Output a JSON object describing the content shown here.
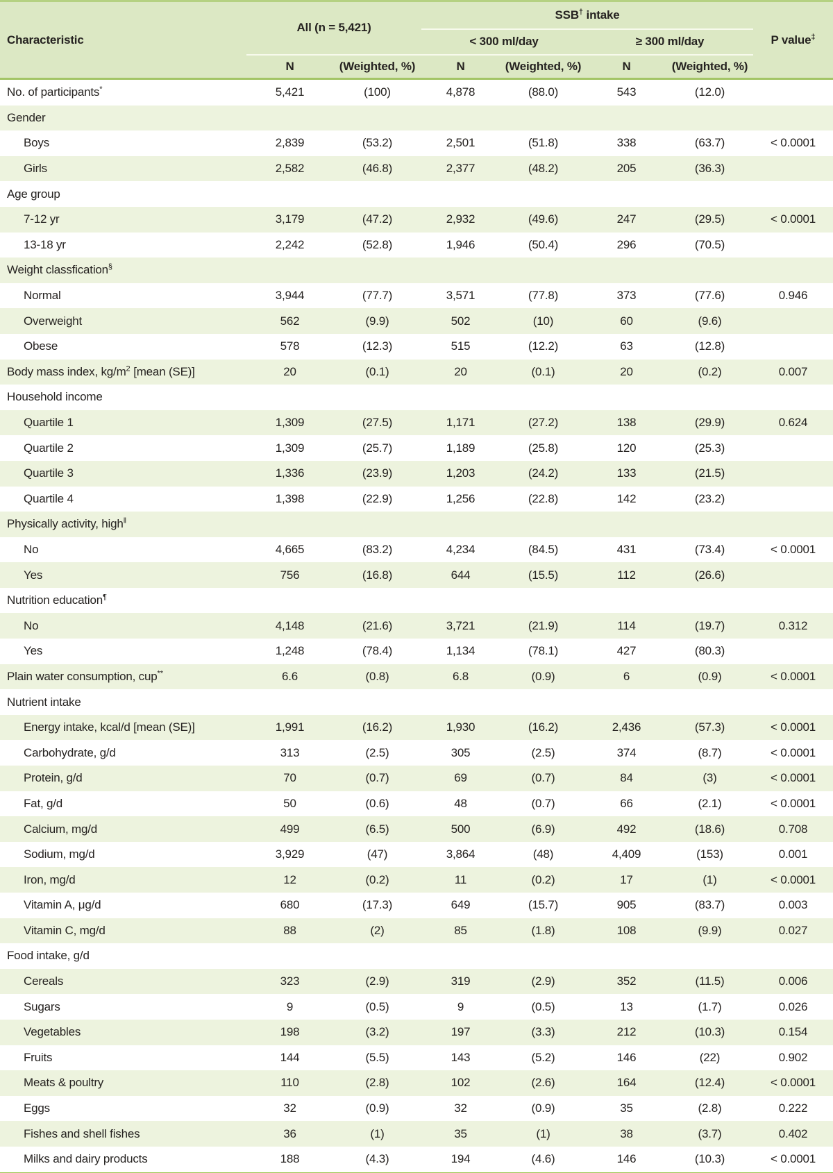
{
  "table": {
    "colors": {
      "header_bg": "#dce8c4",
      "row_alt_bg": "#edf3de",
      "row_bg": "#ffffff",
      "top_border": "#b5d182",
      "header_divider": "#a3c566",
      "bottom_border": "#9cc653",
      "header_inner_line": "#f7faec",
      "text": "#262321"
    },
    "header": {
      "characteristic": "Characteristic",
      "all": "All (n = 5,421)",
      "ssb_intake": {
        "pre": "SSB",
        "sup": "†",
        "post": " intake"
      },
      "group_lt": "< 300 ml/day",
      "group_ge": "≥ 300 ml/day",
      "p_value": {
        "pre": "P value",
        "sup": "‡"
      },
      "n_label": "N",
      "weighted_label": "(Weighted, %)"
    },
    "rows": [
      {
        "label": "No. of participants",
        "sup": "*",
        "indent": false,
        "cells": [
          "5,421",
          "(100)",
          "4,878",
          "(88.0)",
          "543",
          "(12.0)",
          ""
        ]
      },
      {
        "label": "Gender",
        "indent": false,
        "cells": [
          "",
          "",
          "",
          "",
          "",
          "",
          ""
        ]
      },
      {
        "label": "Boys",
        "indent": true,
        "cells": [
          "2,839",
          "(53.2)",
          "2,501",
          "(51.8)",
          "338",
          "(63.7)",
          "< 0.0001"
        ]
      },
      {
        "label": "Girls",
        "indent": true,
        "cells": [
          "2,582",
          "(46.8)",
          "2,377",
          "(48.2)",
          "205",
          "(36.3)",
          ""
        ]
      },
      {
        "label": "Age group",
        "indent": false,
        "cells": [
          "",
          "",
          "",
          "",
          "",
          "",
          ""
        ]
      },
      {
        "label": "7-12 yr",
        "indent": true,
        "cells": [
          "3,179",
          "(47.2)",
          "2,932",
          "(49.6)",
          "247",
          "(29.5)",
          "< 0.0001"
        ]
      },
      {
        "label": "13-18 yr",
        "indent": true,
        "cells": [
          "2,242",
          "(52.8)",
          "1,946",
          "(50.4)",
          "296",
          "(70.5)",
          ""
        ]
      },
      {
        "label": "Weight classfication",
        "sup": "§",
        "indent": false,
        "cells": [
          "",
          "",
          "",
          "",
          "",
          "",
          ""
        ]
      },
      {
        "label": "Normal",
        "indent": true,
        "cells": [
          "3,944",
          "(77.7)",
          "3,571",
          "(77.8)",
          "373",
          "(77.6)",
          "0.946"
        ]
      },
      {
        "label": "Overweight",
        "indent": true,
        "cells": [
          "562",
          "(9.9)",
          "502",
          "(10)",
          "60",
          "(9.6)",
          ""
        ]
      },
      {
        "label": "Obese",
        "indent": true,
        "cells": [
          "578",
          "(12.3)",
          "515",
          "(12.2)",
          "63",
          "(12.8)",
          ""
        ]
      },
      {
        "label": "Body mass index, kg/m",
        "sup": "2",
        "post": " [mean (SE)]",
        "indent": false,
        "cells": [
          "20",
          "(0.1)",
          "20",
          "(0.1)",
          "20",
          "(0.2)",
          "0.007"
        ]
      },
      {
        "label": "Household income",
        "indent": false,
        "cells": [
          "",
          "",
          "",
          "",
          "",
          "",
          ""
        ]
      },
      {
        "label": "Quartile 1",
        "indent": true,
        "cells": [
          "1,309",
          "(27.5)",
          "1,171",
          "(27.2)",
          "138",
          "(29.9)",
          "0.624"
        ]
      },
      {
        "label": "Quartile 2",
        "indent": true,
        "cells": [
          "1,309",
          "(25.7)",
          "1,189",
          "(25.8)",
          "120",
          "(25.3)",
          ""
        ]
      },
      {
        "label": "Quartile 3",
        "indent": true,
        "cells": [
          "1,336",
          "(23.9)",
          "1,203",
          "(24.2)",
          "133",
          "(21.5)",
          ""
        ]
      },
      {
        "label": "Quartile 4",
        "indent": true,
        "cells": [
          "1,398",
          "(22.9)",
          "1,256",
          "(22.8)",
          "142",
          "(23.2)",
          ""
        ]
      },
      {
        "label": "Physically activity, high",
        "sup": "‖",
        "indent": false,
        "cells": [
          "",
          "",
          "",
          "",
          "",
          "",
          ""
        ]
      },
      {
        "label": "No",
        "indent": true,
        "cells": [
          "4,665",
          "(83.2)",
          "4,234",
          "(84.5)",
          "431",
          "(73.4)",
          "< 0.0001"
        ]
      },
      {
        "label": "Yes",
        "indent": true,
        "cells": [
          "756",
          "(16.8)",
          "644",
          "(15.5)",
          "112",
          "(26.6)",
          ""
        ]
      },
      {
        "label": "Nutrition education",
        "sup": "¶",
        "indent": false,
        "cells": [
          "",
          "",
          "",
          "",
          "",
          "",
          ""
        ]
      },
      {
        "label": "No",
        "indent": true,
        "cells": [
          "4,148",
          "(21.6)",
          "3,721",
          "(21.9)",
          "114",
          "(19.7)",
          "0.312"
        ]
      },
      {
        "label": "Yes",
        "indent": true,
        "cells": [
          "1,248",
          "(78.4)",
          "1,134",
          "(78.1)",
          "427",
          "(80.3)",
          ""
        ]
      },
      {
        "label": "Plain water consumption, cup",
        "sup": "**",
        "indent": false,
        "cells": [
          "6.6",
          "(0.8)",
          "6.8",
          "(0.9)",
          "6",
          "(0.9)",
          "< 0.0001"
        ]
      },
      {
        "label": "Nutrient intake",
        "indent": false,
        "cells": [
          "",
          "",
          "",
          "",
          "",
          "",
          ""
        ]
      },
      {
        "label": "Energy intake, kcal/d [mean (SE)]",
        "indent": true,
        "cells": [
          "1,991",
          "(16.2)",
          "1,930",
          "(16.2)",
          "2,436",
          "(57.3)",
          "< 0.0001"
        ]
      },
      {
        "label": "Carbohydrate, g/d",
        "indent": true,
        "cells": [
          "313",
          "(2.5)",
          "305",
          "(2.5)",
          "374",
          "(8.7)",
          "< 0.0001"
        ]
      },
      {
        "label": "Protein, g/d",
        "indent": true,
        "cells": [
          "70",
          "(0.7)",
          "69",
          "(0.7)",
          "84",
          "(3)",
          "< 0.0001"
        ]
      },
      {
        "label": "Fat, g/d",
        "indent": true,
        "cells": [
          "50",
          "(0.6)",
          "48",
          "(0.7)",
          "66",
          "(2.1)",
          "< 0.0001"
        ]
      },
      {
        "label": "Calcium, mg/d",
        "indent": true,
        "cells": [
          "499",
          "(6.5)",
          "500",
          "(6.9)",
          "492",
          "(18.6)",
          "0.708"
        ]
      },
      {
        "label": "Sodium, mg/d",
        "indent": true,
        "cells": [
          "3,929",
          "(47)",
          "3,864",
          "(48)",
          "4,409",
          "(153)",
          "0.001"
        ]
      },
      {
        "label": "Iron, mg/d",
        "indent": true,
        "cells": [
          "12",
          "(0.2)",
          "11",
          "(0.2)",
          "17",
          "(1)",
          "< 0.0001"
        ]
      },
      {
        "label": "Vitamin A, μg/d",
        "indent": true,
        "cells": [
          "680",
          "(17.3)",
          "649",
          "(15.7)",
          "905",
          "(83.7)",
          "0.003"
        ]
      },
      {
        "label": "Vitamin C, mg/d",
        "indent": true,
        "cells": [
          "88",
          "(2)",
          "85",
          "(1.8)",
          "108",
          "(9.9)",
          "0.027"
        ]
      },
      {
        "label": "Food intake, g/d",
        "indent": false,
        "cells": [
          "",
          "",
          "",
          "",
          "",
          "",
          ""
        ]
      },
      {
        "label": "Cereals",
        "indent": true,
        "cells": [
          "323",
          "(2.9)",
          "319",
          "(2.9)",
          "352",
          "(11.5)",
          "0.006"
        ]
      },
      {
        "label": "Sugars",
        "indent": true,
        "cells": [
          "9",
          "(0.5)",
          "9",
          "(0.5)",
          "13",
          "(1.7)",
          "0.026"
        ]
      },
      {
        "label": "Vegetables",
        "indent": true,
        "cells": [
          "198",
          "(3.2)",
          "197",
          "(3.3)",
          "212",
          "(10.3)",
          "0.154"
        ]
      },
      {
        "label": "Fruits",
        "indent": true,
        "cells": [
          "144",
          "(5.5)",
          "143",
          "(5.2)",
          "146",
          "(22)",
          "0.902"
        ]
      },
      {
        "label": "Meats & poultry",
        "indent": true,
        "cells": [
          "110",
          "(2.8)",
          "102",
          "(2.6)",
          "164",
          "(12.4)",
          "< 0.0001"
        ]
      },
      {
        "label": "Eggs",
        "indent": true,
        "cells": [
          "32",
          "(0.9)",
          "32",
          "(0.9)",
          "35",
          "(2.8)",
          "0.222"
        ]
      },
      {
        "label": "Fishes and shell fishes",
        "indent": true,
        "cells": [
          "36",
          "(1)",
          "35",
          "(1)",
          "38",
          "(3.7)",
          "0.402"
        ]
      },
      {
        "label": "Milks and dairy products",
        "indent": true,
        "cells": [
          "188",
          "(4.3)",
          "194",
          "(4.6)",
          "146",
          "(10.3)",
          "< 0.0001"
        ]
      }
    ]
  }
}
